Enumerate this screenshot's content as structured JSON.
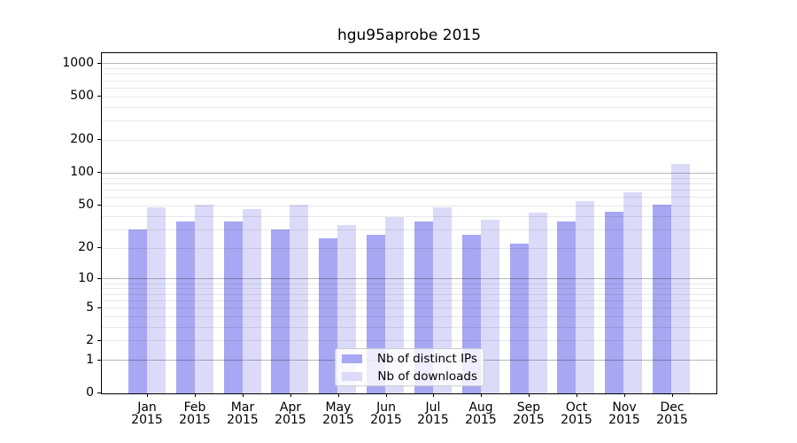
{
  "chart_data": {
    "type": "bar",
    "title": "hgu95aprobe 2015",
    "categories": [
      "Jan",
      "Feb",
      "Mar",
      "Apr",
      "May",
      "Jun",
      "Jul",
      "Aug",
      "Sep",
      "Oct",
      "Nov",
      "Dec"
    ],
    "x_year": "2015",
    "series": [
      {
        "name": "Nb of distinct IPs",
        "color": "#a7a7f3",
        "values": [
          30,
          36,
          36,
          30,
          25,
          27,
          36,
          27,
          22,
          36,
          44,
          51
        ]
      },
      {
        "name": "Nb of downloads",
        "color": "#dbdbf9",
        "values": [
          48,
          51,
          47,
          51,
          33,
          39,
          48,
          37,
          43,
          55,
          67,
          122
        ]
      }
    ],
    "y_scale": "log10(1+x)",
    "ylim": [
      0,
      1250
    ],
    "y_ticks": [
      0,
      1,
      2,
      5,
      10,
      20,
      50,
      100,
      200,
      500,
      1000
    ],
    "y_major_gridlines": [
      1,
      10,
      100,
      1000
    ],
    "y_minor_gridlines": [
      2,
      3,
      4,
      5,
      6,
      7,
      8,
      9,
      20,
      30,
      40,
      50,
      60,
      70,
      80,
      90,
      200,
      300,
      400,
      500,
      600,
      700,
      800,
      900
    ],
    "grid": "on",
    "legend_position": "lower-center-inside",
    "xlabel": "",
    "ylabel": ""
  }
}
